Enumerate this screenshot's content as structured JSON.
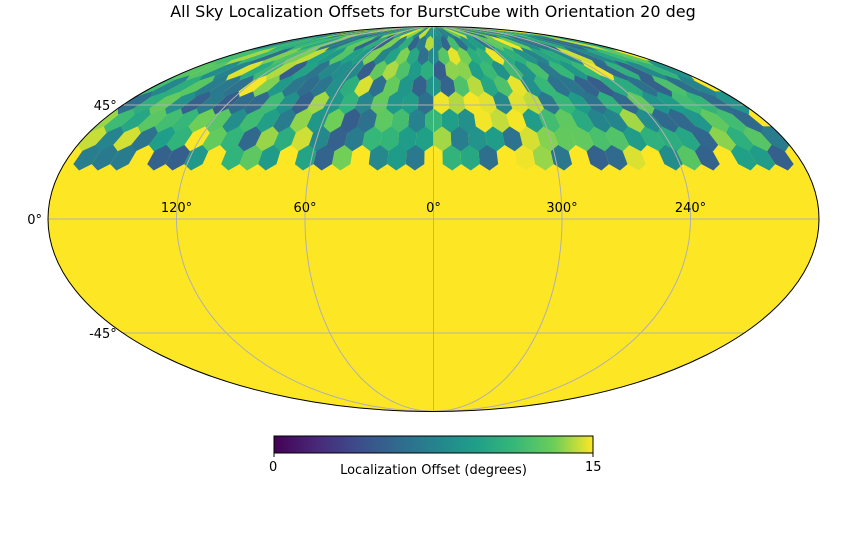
{
  "chart_data": {
    "type": "heatmap",
    "projection": "mollweide",
    "title": "All Sky Localization Offsets for BurstCube with Orientation 20 deg",
    "longitude_tick_labels": [
      "120°",
      "60°",
      "0°",
      "300°",
      "240°"
    ],
    "latitude_tick_labels": [
      "45°",
      "0°",
      "-45°"
    ],
    "grid": true,
    "colormap": "viridis",
    "colorbar": {
      "label": "Localization Offset (degrees)",
      "min": 0,
      "max": 15,
      "tick_labels": [
        "0",
        "15"
      ],
      "placement": "bottom"
    },
    "value_description_note": null,
    "values_summary": {
      "southern_and_equatorial_band_value": 15,
      "northern_cap_value_range": [
        5,
        15
      ],
      "patch_lower_latitude_limit": 25
    }
  }
}
